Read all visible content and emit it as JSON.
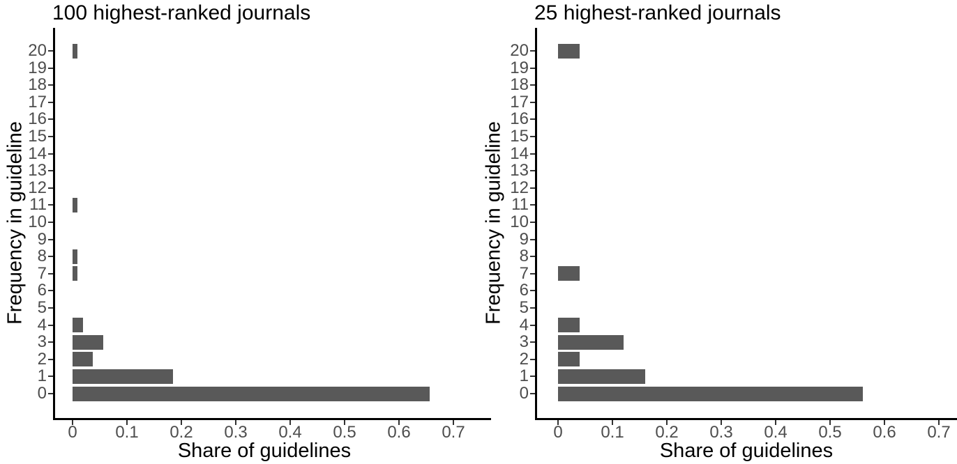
{
  "figure": {
    "background_color": "#ffffff"
  },
  "colors": {
    "bar": "#595959",
    "axis_line": "#000000",
    "tick_mark": "#333333",
    "tick_label": "#4d4d4d",
    "title_text": "#000000"
  },
  "chart_data": [
    {
      "type": "bar",
      "orientation": "horizontal",
      "title": "100 highest-ranked journals",
      "xlabel": "Share of guidelines",
      "ylabel": "Frequency in guideline",
      "categories": [
        "0",
        "1",
        "2",
        "3",
        "4",
        "5",
        "6",
        "7",
        "8",
        "9",
        "10",
        "11",
        "12",
        "13",
        "14",
        "15",
        "16",
        "17",
        "18",
        "19",
        "20"
      ],
      "values": [
        0.657,
        0.185,
        0.037,
        0.056,
        0.019,
        0,
        0,
        0.009,
        0.009,
        0,
        0,
        0.009,
        0,
        0,
        0,
        0,
        0,
        0,
        0,
        0,
        0.009
      ],
      "xticks": [
        0,
        0.1,
        0.2,
        0.3,
        0.4,
        0.5,
        0.6,
        0.7
      ],
      "xtick_labels": [
        "0",
        "0.1",
        "0.2",
        "0.3",
        "0.4",
        "0.5",
        "0.6",
        "0.7"
      ],
      "xlim": [
        0,
        0.74
      ],
      "grid": "off",
      "legend": "none",
      "bar_color": "#595959"
    },
    {
      "type": "bar",
      "orientation": "horizontal",
      "title": "25 highest-ranked journals",
      "xlabel": "Share of guidelines",
      "ylabel": "Frequency in guideline",
      "categories": [
        "0",
        "1",
        "2",
        "3",
        "4",
        "5",
        "6",
        "7",
        "8",
        "9",
        "10",
        "11",
        "12",
        "13",
        "14",
        "15",
        "16",
        "17",
        "18",
        "19",
        "20"
      ],
      "values": [
        0.56,
        0.16,
        0.04,
        0.12,
        0.04,
        0,
        0,
        0.04,
        0,
        0,
        0,
        0,
        0,
        0,
        0,
        0,
        0,
        0,
        0,
        0,
        0.04
      ],
      "xticks": [
        0,
        0.1,
        0.2,
        0.3,
        0.4,
        0.5,
        0.6,
        0.7
      ],
      "xtick_labels": [
        "0",
        "0.1",
        "0.2",
        "0.3",
        "0.4",
        "0.5",
        "0.6",
        "0.7"
      ],
      "xlim": [
        0,
        0.74
      ],
      "grid": "off",
      "legend": "none",
      "bar_color": "#595959"
    }
  ]
}
